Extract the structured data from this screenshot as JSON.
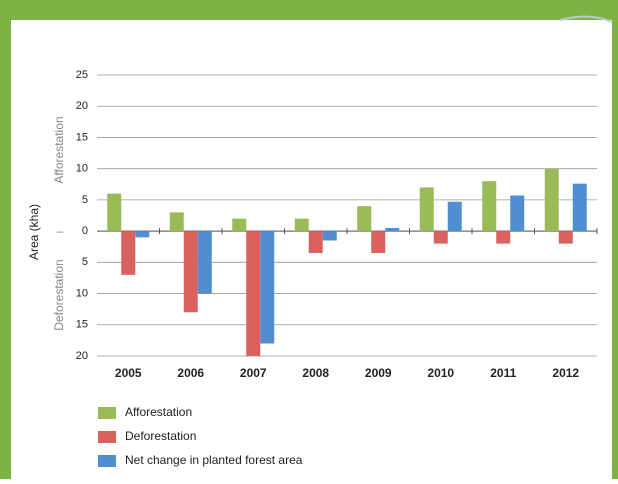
{
  "chart_data": {
    "type": "bar",
    "categories": [
      "2005",
      "2006",
      "2007",
      "2008",
      "2009",
      "2010",
      "2011",
      "2012"
    ],
    "series": [
      {
        "name": "Afforestation",
        "color": "#9bbb59",
        "values": [
          6,
          3,
          2,
          2,
          4,
          7,
          8,
          10
        ]
      },
      {
        "name": "Deforestation",
        "color": "#d9625f",
        "values": [
          -7,
          -13,
          -20,
          -3.5,
          -3.5,
          -2,
          -2,
          -2
        ]
      },
      {
        "name": "Net change in planted forest area",
        "color": "#4f8fd1",
        "values": [
          -1,
          -10,
          -18,
          -1.5,
          0.5,
          4.7,
          5.7,
          7.6
        ]
      }
    ],
    "ylabel": "Area (kha)",
    "ylabel_upper": "Afforestation",
    "ylabel_lower": "Deforestation",
    "ylabel_divider": "–",
    "ylim": [
      -20,
      25
    ],
    "yticks": [
      {
        "value": -20,
        "label": "20"
      },
      {
        "value": -15,
        "label": "15"
      },
      {
        "value": -10,
        "label": "10"
      },
      {
        "value": -5,
        "label": "5"
      },
      0,
      5,
      10,
      15,
      20,
      25
    ],
    "grid": true,
    "legend": "bottom"
  }
}
